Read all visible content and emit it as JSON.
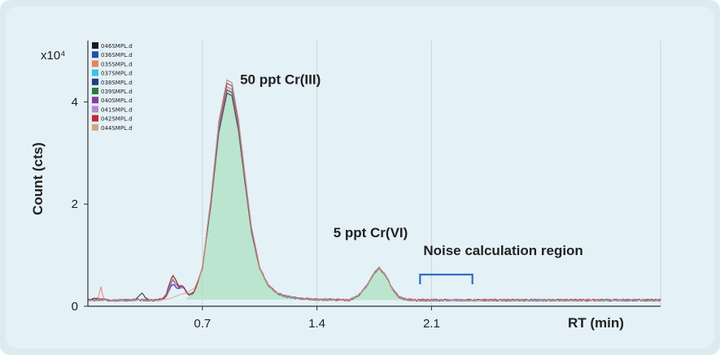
{
  "chart_data": {
    "type": "line",
    "xlabel": "RT (min)",
    "ylabel": "Count (cts)",
    "y_multiplier_label": "x10⁴",
    "xlim": [
      0,
      3.5
    ],
    "ylim": [
      0,
      5.2
    ],
    "x_ticks": [
      {
        "value": 0.7,
        "label": "0.7"
      },
      {
        "value": 1.4,
        "label": "1.4"
      },
      {
        "value": 2.1,
        "label": "2.1"
      }
    ],
    "y_ticks": [
      {
        "value": 0,
        "label": "0"
      },
      {
        "value": 2,
        "label": "2"
      },
      {
        "value": 4,
        "label": "4"
      }
    ],
    "grid": "vertical",
    "legend_position": "top-left",
    "fill_color": "#a9e0bf",
    "series": [
      {
        "name": "046SMPL.d",
        "color": "#1a1a1a"
      },
      {
        "name": "036SMPL.d",
        "color": "#1f4fae"
      },
      {
        "name": "035SMPL.d",
        "color": "#f07f5a"
      },
      {
        "name": "037SMPL.d",
        "color": "#33c4e6"
      },
      {
        "name": "038SMPL.d",
        "color": "#243b8a"
      },
      {
        "name": "039SMPL.d",
        "color": "#2a7a3a"
      },
      {
        "name": "040SMPL.d",
        "color": "#8a3aa8"
      },
      {
        "name": "041SMPL.d",
        "color": "#b58ad0"
      },
      {
        "name": "042SMPL.d",
        "color": "#c8282c"
      },
      {
        "name": "044SMPL.d",
        "color": "#cfa782"
      }
    ],
    "profile": [
      [
        0,
        0.12
      ],
      [
        0.05,
        0.12
      ],
      [
        0.1,
        0.13
      ],
      [
        0.15,
        0.11
      ],
      [
        0.2,
        0.12
      ],
      [
        0.25,
        0.12
      ],
      [
        0.3,
        0.13
      ],
      [
        0.35,
        0.12
      ],
      [
        0.4,
        0.12
      ],
      [
        0.45,
        0.13
      ],
      [
        0.5,
        0.12
      ],
      [
        0.55,
        0.13
      ],
      [
        0.6,
        0.15
      ],
      [
        0.65,
        0.28
      ],
      [
        0.7,
        0.75
      ],
      [
        0.75,
        2.0
      ],
      [
        0.8,
        3.5
      ],
      [
        0.85,
        4.3
      ],
      [
        0.88,
        4.25
      ],
      [
        0.92,
        3.55
      ],
      [
        0.96,
        2.5
      ],
      [
        1.0,
        1.5
      ],
      [
        1.05,
        0.75
      ],
      [
        1.1,
        0.42
      ],
      [
        1.15,
        0.27
      ],
      [
        1.2,
        0.2
      ],
      [
        1.3,
        0.15
      ],
      [
        1.4,
        0.13
      ],
      [
        1.5,
        0.13
      ],
      [
        1.6,
        0.12
      ],
      [
        1.65,
        0.2
      ],
      [
        1.7,
        0.38
      ],
      [
        1.75,
        0.65
      ],
      [
        1.78,
        0.75
      ],
      [
        1.82,
        0.6
      ],
      [
        1.86,
        0.35
      ],
      [
        1.9,
        0.18
      ],
      [
        1.95,
        0.13
      ],
      [
        2.0,
        0.12
      ],
      [
        2.2,
        0.12
      ],
      [
        2.4,
        0.12
      ],
      [
        2.6,
        0.12
      ],
      [
        2.8,
        0.12
      ],
      [
        3.0,
        0.12
      ],
      [
        3.2,
        0.12
      ],
      [
        3.5,
        0.12
      ]
    ],
    "annotations": [
      {
        "text": "50 ppt Cr(III)",
        "x": 0.93,
        "y": 4.35
      },
      {
        "text": "5 ppt Cr(VI)",
        "x": 1.5,
        "y": 1.35
      },
      {
        "text": "Noise calculation region",
        "x": 2.05,
        "y": 1.0
      }
    ],
    "noise_region": {
      "x_start": 2.03,
      "x_end": 2.35
    }
  }
}
